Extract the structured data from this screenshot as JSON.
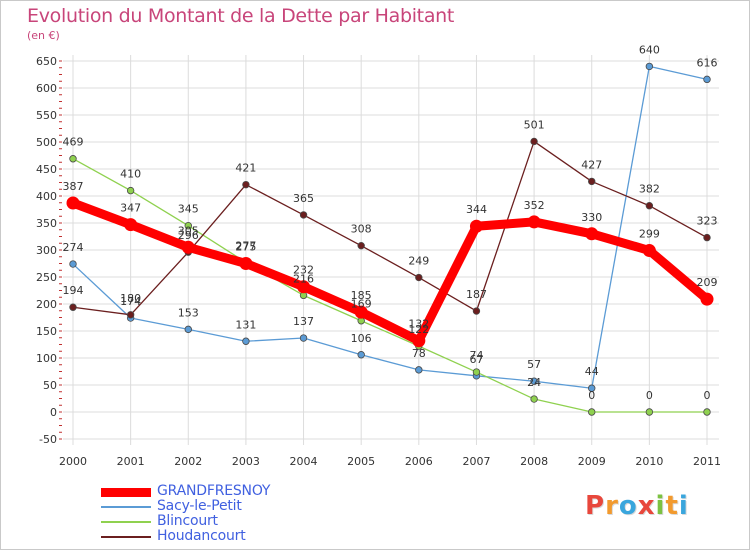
{
  "title": "Evolution du Montant de la Dette par Habitant",
  "unit": "(en €)",
  "brand": {
    "text": "Proxiti",
    "letters": [
      {
        "ch": "P",
        "color": "#e8473c"
      },
      {
        "ch": "r",
        "color": "#f29a2e"
      },
      {
        "ch": "o",
        "color": "#3aa6dd"
      },
      {
        "ch": "x",
        "color": "#e8473c"
      },
      {
        "ch": "i",
        "color": "#7cc242"
      },
      {
        "ch": "t",
        "color": "#f29a2e"
      },
      {
        "ch": "i",
        "color": "#3aa6dd"
      }
    ]
  },
  "chart_data": {
    "type": "line",
    "x": [
      "2000",
      "2001",
      "2002",
      "2003",
      "2004",
      "2005",
      "2006",
      "2007",
      "2008",
      "2009",
      "2010",
      "2011"
    ],
    "ylim": [
      -50,
      650
    ],
    "yticks": [
      -50,
      0,
      50,
      100,
      150,
      200,
      250,
      300,
      350,
      400,
      450,
      500,
      550,
      600,
      650
    ],
    "grid": true,
    "legend_position": "bottom-left",
    "series": [
      {
        "name": "GRANDFRESNOY",
        "color": "#ff0000",
        "width": "thick",
        "values": [
          387,
          347,
          305,
          275,
          232,
          185,
          132,
          344,
          352,
          330,
          299,
          209
        ]
      },
      {
        "name": "Sacy-le-Petit",
        "color": "#5b9bd5",
        "width": "thin",
        "values": [
          274,
          174,
          153,
          131,
          137,
          106,
          78,
          67,
          57,
          44,
          640,
          616
        ]
      },
      {
        "name": "Blincourt",
        "color": "#8fd14f",
        "width": "thin",
        "values": [
          469,
          410,
          345,
          277,
          216,
          169,
          122,
          74,
          24,
          0,
          0,
          0
        ]
      },
      {
        "name": "Houdancourt",
        "color": "#6b1f1f",
        "width": "thin",
        "values": [
          194,
          180,
          296,
          421,
          365,
          308,
          249,
          187,
          501,
          427,
          382,
          323
        ]
      }
    ]
  }
}
